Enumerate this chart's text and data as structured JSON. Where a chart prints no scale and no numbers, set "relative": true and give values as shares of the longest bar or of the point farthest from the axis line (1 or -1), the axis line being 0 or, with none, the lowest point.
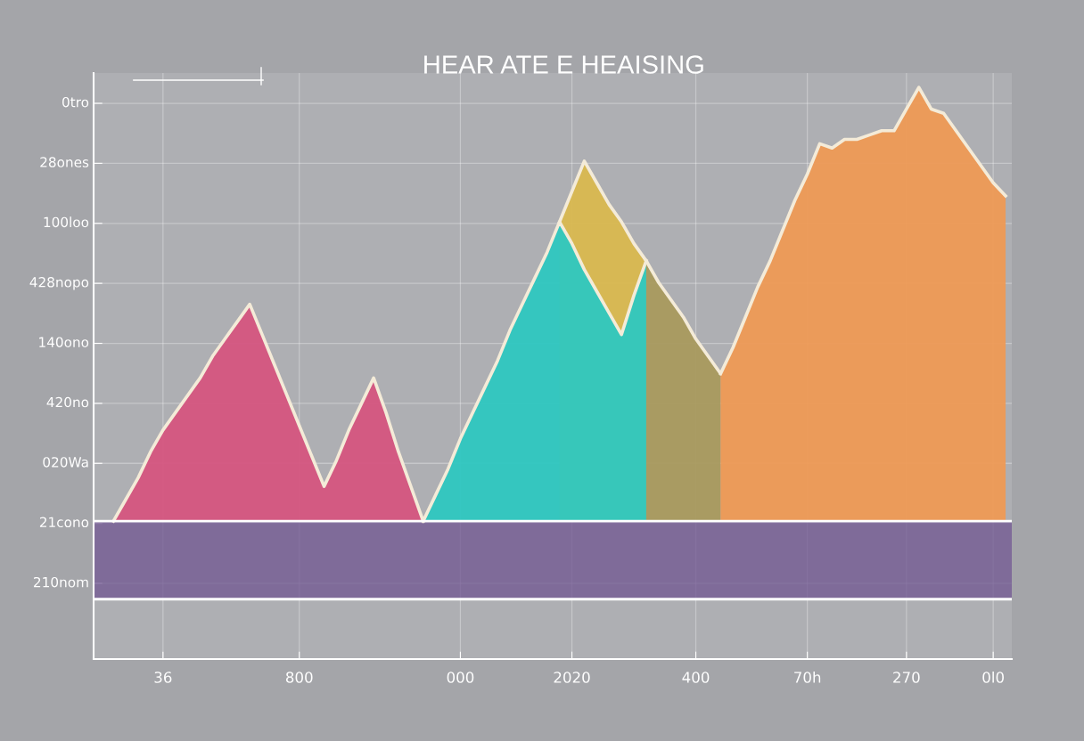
{
  "chart_data": {
    "type": "area",
    "relative": true,
    "title": "HEAR ATE E HEAISING",
    "categories": [
      null,
      null,
      null,
      null,
      "36",
      null,
      null,
      null,
      null,
      null,
      null,
      null,
      null,
      null,
      null,
      "800",
      null,
      null,
      null,
      null,
      null,
      null,
      null,
      null,
      null,
      null,
      null,
      null,
      "000",
      null,
      null,
      null,
      null,
      null,
      null,
      null,
      null,
      "2020",
      null,
      null,
      null,
      null,
      null,
      null,
      null,
      null,
      null,
      "400",
      null,
      null,
      null,
      null,
      null,
      null,
      null,
      null,
      "70h",
      null,
      null,
      null,
      null,
      null,
      null,
      null,
      "270",
      null,
      null,
      null,
      null,
      null,
      null,
      "0l0",
      null
    ],
    "series": [
      {
        "color": "#d9b84f",
        "values": [
          null,
          null,
          null,
          null,
          null,
          null,
          null,
          null,
          null,
          null,
          null,
          null,
          null,
          null,
          null,
          null,
          null,
          null,
          null,
          null,
          null,
          null,
          null,
          null,
          null,
          null,
          null,
          null,
          null,
          null,
          null,
          null,
          null,
          null,
          null,
          null,
          0.69,
          0.76,
          0.83,
          0.78,
          0.73,
          0.69,
          0.64,
          0.6,
          null,
          null,
          null,
          null,
          null,
          null,
          null,
          null,
          null,
          null,
          null,
          null,
          null,
          null,
          null,
          null,
          null,
          null,
          null,
          null,
          null,
          null,
          null,
          null,
          null,
          null,
          null,
          null,
          null
        ]
      },
      {
        "color": "#d5557f",
        "values": [
          0,
          0.05,
          0.1,
          0.16,
          0.21,
          0.25,
          0.29,
          0.33,
          0.38,
          0.42,
          0.46,
          0.5,
          0.43,
          0.36,
          0.29,
          0.22,
          0.15,
          0.08,
          0.14,
          0.21,
          0.27,
          0.33,
          0.25,
          0.16,
          0.08,
          0,
          null,
          null,
          null,
          null,
          null,
          null,
          null,
          null,
          null,
          null,
          null,
          null,
          null,
          null,
          null,
          null,
          null,
          null,
          null,
          null,
          null,
          null,
          null,
          null,
          null,
          null,
          null,
          null,
          null,
          null,
          null,
          null,
          null,
          null,
          null,
          null,
          null,
          null,
          null,
          null,
          null,
          null,
          null,
          null,
          null,
          null,
          null
        ]
      },
      {
        "color": "#2ec7c0",
        "values": [
          null,
          null,
          null,
          null,
          null,
          null,
          null,
          null,
          null,
          null,
          null,
          null,
          null,
          null,
          null,
          null,
          null,
          null,
          null,
          null,
          null,
          null,
          null,
          null,
          null,
          0,
          0.06,
          0.12,
          0.19,
          0.25,
          0.31,
          0.37,
          0.44,
          0.5,
          0.56,
          0.62,
          0.69,
          0.64,
          0.58,
          0.53,
          0.48,
          0.43,
          0.52,
          0.6,
          null,
          null,
          null,
          null,
          null,
          null,
          null,
          null,
          null,
          null,
          null,
          null,
          null,
          null,
          null,
          null,
          null,
          null,
          null,
          null,
          null,
          null,
          null,
          null,
          null,
          null,
          null,
          null,
          null
        ]
      },
      {
        "color": "#a99a5e",
        "values": [
          null,
          null,
          null,
          null,
          null,
          null,
          null,
          null,
          null,
          null,
          null,
          null,
          null,
          null,
          null,
          null,
          null,
          null,
          null,
          null,
          null,
          null,
          null,
          null,
          null,
          null,
          null,
          null,
          null,
          null,
          null,
          null,
          null,
          null,
          null,
          null,
          null,
          null,
          null,
          null,
          null,
          null,
          null,
          0.6,
          0.55,
          0.51,
          0.47,
          0.42,
          0.38,
          0.34,
          null,
          null,
          null,
          null,
          null,
          null,
          null,
          null,
          null,
          null,
          null,
          null,
          null,
          null,
          null,
          null,
          null,
          null,
          null,
          null,
          null,
          null,
          null
        ]
      },
      {
        "color": "#ee9a55",
        "values": [
          null,
          null,
          null,
          null,
          null,
          null,
          null,
          null,
          null,
          null,
          null,
          null,
          null,
          null,
          null,
          null,
          null,
          null,
          null,
          null,
          null,
          null,
          null,
          null,
          null,
          null,
          null,
          null,
          null,
          null,
          null,
          null,
          null,
          null,
          null,
          null,
          null,
          null,
          null,
          null,
          null,
          null,
          null,
          null,
          null,
          null,
          null,
          null,
          null,
          0.34,
          0.4,
          0.47,
          0.54,
          0.6,
          0.67,
          0.74,
          0.8,
          0.87,
          0.86,
          0.88,
          0.88,
          0.89,
          0.9,
          0.9,
          0.95,
          1,
          0.95,
          0.94,
          0.9,
          0.86,
          0.82,
          0.78,
          0.75
        ]
      }
    ],
    "annotations": [
      "0tro",
      "28ones",
      "100loo",
      "428nopo",
      "140ono",
      "420no",
      "020Wa",
      "21cono",
      "210nom"
    ],
    "ref_lines": [
      {
        "axis": "y",
        "value": 0,
        "color": "#ffffff"
      },
      {
        "axis": "y",
        "value": -0.18,
        "color": "#ffffff"
      }
    ],
    "bands": [
      {
        "axis": "y",
        "from": -0.18,
        "to": 0,
        "color": "#6f5490"
      }
    ],
    "grid": true,
    "marker": "none",
    "line_style": "solid"
  }
}
